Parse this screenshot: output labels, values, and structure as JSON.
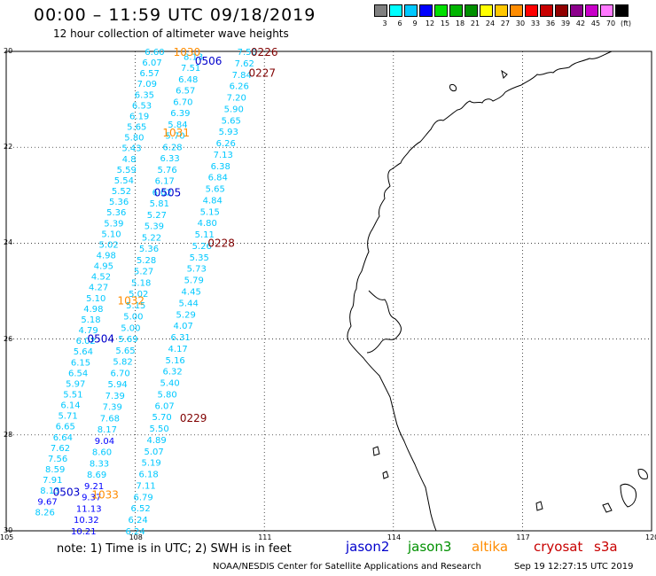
{
  "title": "00:00 – 11:59 UTC 09/18/2019",
  "subtitle": "12 hour collection of altimeter wave heights",
  "colorbar": {
    "colors": [
      "#808080",
      "#00ffff",
      "#00c8ff",
      "#0000ff",
      "#00e000",
      "#00b400",
      "#009000",
      "#ffff00",
      "#ffc800",
      "#ff8c00",
      "#ff0000",
      "#c80000",
      "#900000",
      "#8c008c",
      "#c800c8",
      "#ff78ff",
      "#000000"
    ],
    "labels": [
      "3",
      "6",
      "9",
      "12",
      "15",
      "18",
      "21",
      "24",
      "27",
      "30",
      "33",
      "36",
      "39",
      "42",
      "45",
      "70",
      "(ft)"
    ]
  },
  "lat_labels": [
    "20",
    "22",
    "24",
    "26",
    "28",
    "30"
  ],
  "lon_labels": [
    "105",
    "108",
    "111",
    "114",
    "117",
    "120"
  ],
  "tracks": [
    {
      "pass": "0503",
      "pass_color": "#0000cc",
      "color": "#00c8ff",
      "lat": [
        20.0,
        29.6
      ],
      "lon": [
        108.45,
        105.9
      ],
      "values": [
        "6.60",
        "6.07",
        "6.57",
        "7.09",
        "6.35",
        "6.53",
        "6.19",
        "5.65",
        "5.80",
        "5.43",
        "4.8",
        "5.59",
        "5.54",
        "5.52",
        "5.36",
        "5.36",
        "5.39",
        "5.10",
        "5.02",
        "4.98",
        "4.95",
        "4.52",
        "4.27",
        "5.10",
        "4.98",
        "5.18",
        "4.79",
        "6.02",
        "5.64",
        "6.15",
        "6.54",
        "5.97",
        "5.51",
        "6.14",
        "5.71",
        "6.65",
        "6.64",
        "7.62",
        "7.56",
        "8.59",
        "7.91",
        "8.13",
        "9.67",
        "8.26"
      ]
    },
    {
      "pass": "0504",
      "pass_color": "#0000cc",
      "color": "#00c8ff",
      "lat": [
        20.1,
        30.0
      ],
      "lon": [
        109.35,
        106.8
      ],
      "values": [
        "8.13",
        "7.51",
        "6.48",
        "6.57",
        "6.70",
        "6.39",
        "5.84",
        "5.70",
        "6.28",
        "6.33",
        "5.76",
        "6.17",
        "6.02",
        "5.81",
        "5.27",
        "5.39",
        "5.22",
        "5.36",
        "5.28",
        "5.27",
        "5.18",
        "5.02",
        "5.15",
        "5.00",
        "5.00",
        "5.69",
        "5.65",
        "5.82",
        "6.70",
        "5.94",
        "7.39",
        "7.39",
        "7.68",
        "8.17",
        "9.04",
        "8.60",
        "8.33",
        "8.69",
        "9.21",
        "9.37",
        "11.13",
        "10.32",
        "10.21"
      ]
    },
    {
      "pass": "0505",
      "pass_color": "#0000cc",
      "color": "#00c8ff",
      "lat": [
        20.0,
        30.0
      ],
      "lon": [
        110.6,
        108.0
      ],
      "values": [
        "7.50",
        "7.62",
        "7.84",
        "6.26",
        "7.20",
        "5.90",
        "5.65",
        "5.93",
        "6.26",
        "7.13",
        "6.38",
        "6.84",
        "5.65",
        "4.84",
        "5.15",
        "4.80",
        "5.11",
        "5.26",
        "5.35",
        "5.73",
        "5.79",
        "4.45",
        "5.44",
        "5.29",
        "4.07",
        "6.31",
        "4.17",
        "5.16",
        "6.32",
        "5.40",
        "5.80",
        "6.07",
        "5.70",
        "5.50",
        "4.89",
        "5.07",
        "5.19",
        "6.18",
        "7.11",
        "6.79",
        "6.52",
        "6.24",
        "6.24"
      ]
    }
  ],
  "pass_labels": [
    {
      "text": "1030",
      "color": "#ff8c00",
      "lat": 20.02,
      "lon": 109.2
    },
    {
      "text": "0226",
      "color": "#800000",
      "lat": 20.02,
      "lon": 111.0
    },
    {
      "text": "0506",
      "color": "#0000cc",
      "lat": 20.2,
      "lon": 109.7
    },
    {
      "text": "0227",
      "color": "#800000",
      "lat": 20.45,
      "lon": 110.95
    },
    {
      "text": "1031",
      "color": "#ff8c00",
      "lat": 21.7,
      "lon": 108.95
    },
    {
      "text": "0505",
      "color": "#0000cc",
      "lat": 22.95,
      "lon": 108.75
    },
    {
      "text": "0228",
      "color": "#800000",
      "lat": 24.0,
      "lon": 110.0
    },
    {
      "text": "1032",
      "color": "#ff8c00",
      "lat": 25.2,
      "lon": 107.9
    },
    {
      "text": "0504",
      "color": "#0000cc",
      "lat": 26.0,
      "lon": 107.2
    },
    {
      "text": "0229",
      "color": "#800000",
      "lat": 27.65,
      "lon": 109.35
    },
    {
      "text": "0503",
      "color": "#0000cc",
      "lat": 29.2,
      "lon": 106.4
    },
    {
      "text": "1033",
      "color": "#ff8c00",
      "lat": 29.25,
      "lon": 107.3
    }
  ],
  "note": "note: 1) Time is in UTC; 2) SWH is in feet",
  "legend": [
    {
      "text": "jason2",
      "color": "#0000cc"
    },
    {
      "text": "jason3",
      "color": "#009000"
    },
    {
      "text": "altika",
      "color": "#ff8c00"
    },
    {
      "text": "cryosat",
      "color": "#c80000"
    },
    {
      "text": "s3a",
      "color": "#c80000"
    }
  ],
  "credit": "NOAA/NESDIS Center for Satellite Applications and Research",
  "timestamp": "Sep 19 12:27:15 UTC 2019"
}
